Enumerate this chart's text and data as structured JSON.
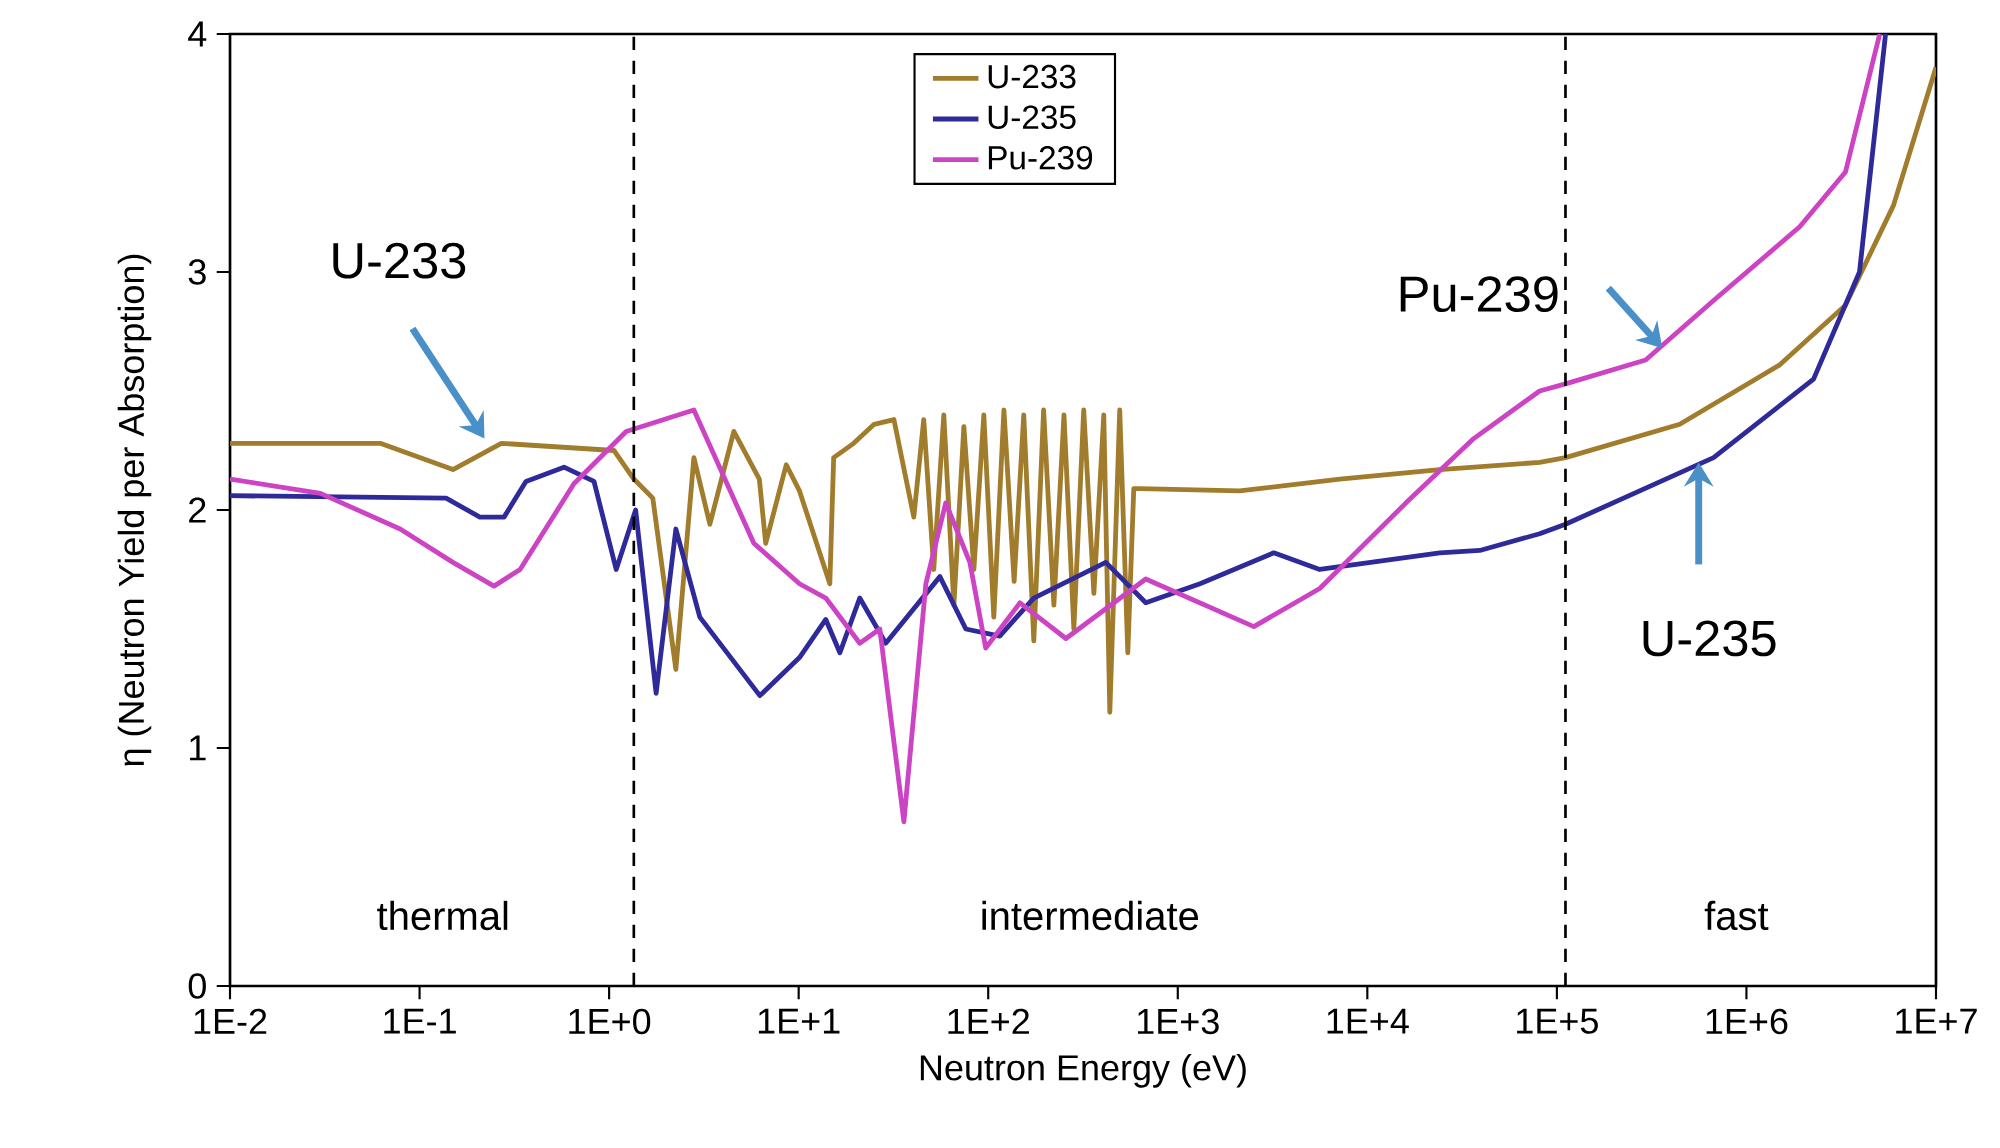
{
  "chart_data": {
    "type": "line",
    "xlabel": "Neutron Energy (eV)",
    "ylabel": "η  (Neutron Yield  per  Absorption)",
    "log": "x",
    "grid": false,
    "legend": "top",
    "marker": "none",
    "line_style": "solid",
    "xlim": [
      0.01,
      10000000
    ],
    "ylim": [
      0,
      4
    ],
    "xticks": [
      {
        "value": 0.01,
        "label": "1E-2"
      },
      {
        "value": 0.1,
        "label": "1E-1"
      },
      {
        "value": 1,
        "label": "1E+0"
      },
      {
        "value": 10,
        "label": "1E+1"
      },
      {
        "value": 100,
        "label": "1E+2"
      },
      {
        "value": 1000,
        "label": "1E+3"
      },
      {
        "value": 10000,
        "label": "1E+4"
      },
      {
        "value": 100000,
        "label": "1E+5"
      },
      {
        "value": 1000000,
        "label": "1E+6"
      },
      {
        "value": 10000000,
        "label": "1E+7"
      }
    ],
    "yticks": [
      0,
      1,
      2,
      3,
      4
    ],
    "series": [
      {
        "name": "U-233",
        "color": "#a07c2c",
        "x": [
          0.01,
          0.062,
          0.15,
          0.27,
          1.06,
          1.35,
          1.7,
          2.25,
          2.8,
          3.4,
          4.55,
          6.2,
          6.7,
          8.6,
          10.1,
          14.6,
          15.3,
          19.5,
          25,
          31.8,
          40.5,
          45.7,
          51.6,
          58.3,
          65.9,
          74.4,
          84,
          94.8,
          107,
          121,
          137,
          154,
          174,
          196,
          222,
          251,
          283,
          319,
          361,
          407,
          438,
          494,
          545,
          586,
          630,
          2120,
          7150,
          24100,
          81100,
          111000,
          445000,
          1500000,
          3330000,
          5970000,
          10000000
        ],
        "values": [
          2.28,
          2.28,
          2.17,
          2.28,
          2.25,
          2.13,
          2.05,
          1.33,
          2.22,
          1.94,
          2.33,
          2.13,
          1.86,
          2.19,
          2.08,
          1.69,
          2.22,
          2.28,
          2.36,
          2.38,
          1.97,
          2.38,
          1.75,
          2.4,
          1.6,
          2.35,
          1.75,
          2.4,
          1.55,
          2.42,
          1.7,
          2.4,
          1.45,
          2.42,
          1.6,
          2.4,
          1.5,
          2.42,
          1.65,
          2.4,
          1.15,
          2.42,
          1.4,
          2.09,
          2.09,
          2.08,
          2.13,
          2.17,
          2.2,
          2.22,
          2.36,
          2.61,
          2.86,
          3.28,
          3.86
        ]
      },
      {
        "name": "U-235",
        "color": "#2f2a9a",
        "x": [
          0.01,
          0.138,
          0.208,
          0.279,
          0.364,
          0.578,
          0.832,
          1.09,
          1.38,
          1.77,
          2.25,
          3.01,
          6.24,
          10.1,
          13.9,
          16.5,
          21,
          28.8,
          55.6,
          76.2,
          115,
          174,
          417,
          678,
          1310,
          3210,
          5610,
          24100,
          39200,
          81100,
          111000,
          671000,
          2260000,
          3950000,
          5420000
        ],
        "values": [
          2.06,
          2.05,
          1.97,
          1.97,
          2.12,
          2.18,
          2.12,
          1.75,
          2.0,
          1.23,
          1.92,
          1.55,
          1.22,
          1.38,
          1.54,
          1.4,
          1.63,
          1.44,
          1.72,
          1.5,
          1.47,
          1.63,
          1.78,
          1.61,
          1.69,
          1.82,
          1.75,
          1.82,
          1.83,
          1.9,
          1.94,
          2.22,
          2.55,
          3.0,
          4.0
        ]
      },
      {
        "name": "Pu-239",
        "color": "#cc44c4",
        "x": [
          0.01,
          0.03,
          0.079,
          0.15,
          0.247,
          0.339,
          0.652,
          1.23,
          2.8,
          5.8,
          10.1,
          13.9,
          21,
          26.8,
          35.9,
          46.9,
          59.7,
          80,
          97,
          147,
          257,
          678,
          2520,
          5610,
          16000,
          36400,
          81100,
          111000,
          294000,
          671000,
          1910000,
          3330000,
          5050000
        ],
        "values": [
          2.13,
          2.07,
          1.92,
          1.78,
          1.68,
          1.75,
          2.11,
          2.33,
          2.42,
          1.86,
          1.69,
          1.63,
          1.44,
          1.5,
          0.69,
          1.69,
          2.03,
          1.78,
          1.42,
          1.61,
          1.46,
          1.71,
          1.51,
          1.67,
          2.03,
          2.3,
          2.5,
          2.53,
          2.63,
          2.88,
          3.19,
          3.42,
          4.0
        ]
      }
    ],
    "ref_lines": [
      {
        "axis": "x",
        "value": 1.35,
        "color": "#000000",
        "line_style": "dashed"
      },
      {
        "axis": "x",
        "value": 111000,
        "color": "#000000",
        "line_style": "dashed"
      }
    ],
    "annotations": [
      {
        "text": "U-233",
        "x": 0.22,
        "y": 2.3
      },
      {
        "text": "Pu-239",
        "x": 360000,
        "y": 2.68
      },
      {
        "text": "U-235",
        "x": 560000,
        "y": 2.2
      },
      "thermal",
      "intermediate",
      "fast"
    ]
  }
}
